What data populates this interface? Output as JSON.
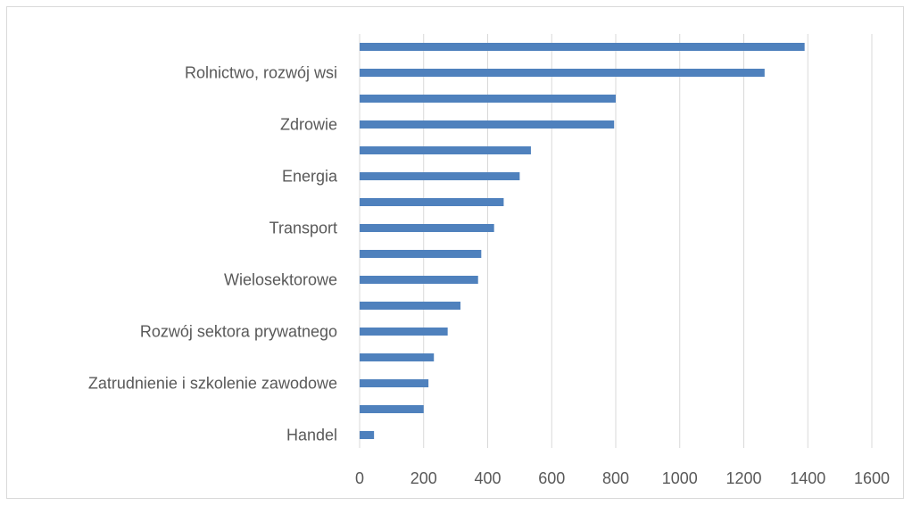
{
  "chart_data": {
    "type": "bar",
    "orientation": "horizontal",
    "title": "",
    "xlabel": "",
    "ylabel": "",
    "categories": [
      "Handel",
      "",
      "Zatrudnienie i szkolenie zawodowe",
      "",
      "Rozwój sektora prywatnego",
      "",
      "Wielosektorowe",
      "",
      "Transport",
      "",
      "Energia",
      "",
      "Zdrowie",
      "",
      "Rolnictwo, rozwój wsi",
      ""
    ],
    "values": [
      45,
      200,
      215,
      232,
      275,
      315,
      370,
      380,
      420,
      450,
      500,
      535,
      795,
      800,
      1265,
      1390
    ],
    "xlim": [
      0,
      1600
    ],
    "xticks": [
      "0",
      "200",
      "400",
      "600",
      "800",
      "1000",
      "1200",
      "1400",
      "1600"
    ],
    "grid": true,
    "legend": "none",
    "bar_color": "#4f81bd",
    "grid_color": "#d9d9d9",
    "text_color": "#595959"
  }
}
